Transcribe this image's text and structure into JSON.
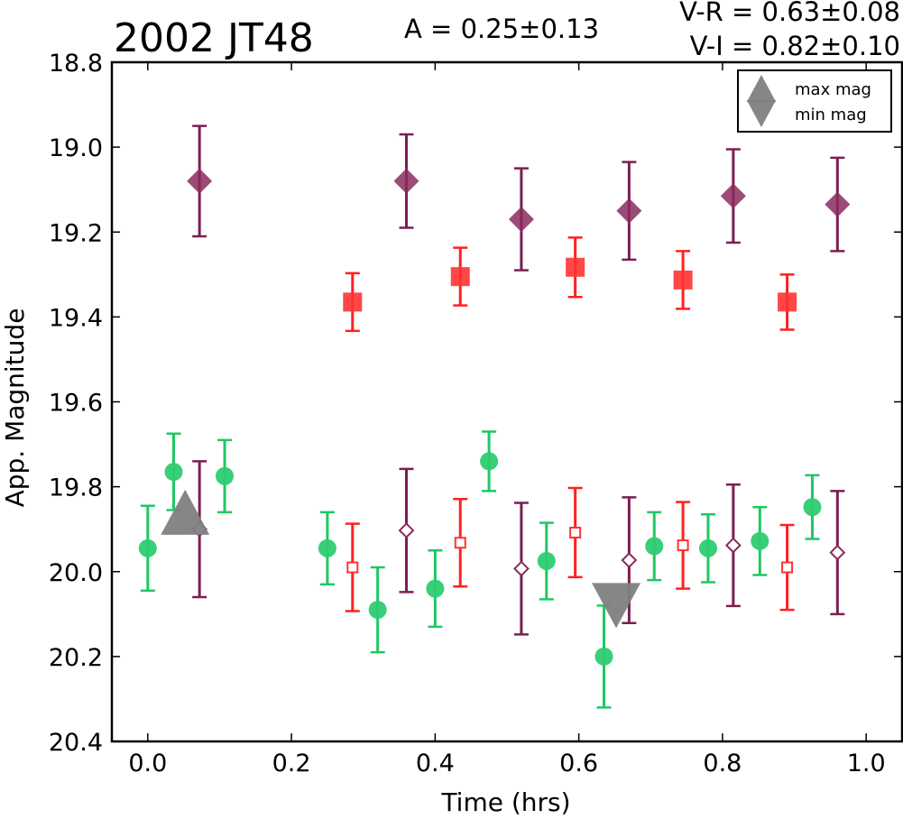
{
  "chart_data": {
    "type": "scatter",
    "title": "2002 JT48",
    "amplitude_text": "A  = 0.25±0.13",
    "color_lines": [
      "V-R = 0.63±0.08",
      "V-I  = 0.82±0.10"
    ],
    "xlabel": "Time (hrs)",
    "ylabel": "App. Magnitude",
    "xlim": [
      -0.05,
      1.05
    ],
    "ylim": [
      20.4,
      18.8
    ],
    "y_inverted": true,
    "xticks": [
      "0.0",
      "0.2",
      "0.4",
      "0.6",
      "0.8",
      "1.0"
    ],
    "xtick_values": [
      0.0,
      0.2,
      0.4,
      0.6,
      0.8,
      1.0
    ],
    "yticks": [
      "18.8",
      "19.0",
      "19.2",
      "19.4",
      "19.6",
      "19.8",
      "20.0",
      "20.2",
      "20.4"
    ],
    "ytick_values": [
      18.8,
      19.0,
      19.2,
      19.4,
      19.6,
      19.8,
      20.0,
      20.2,
      20.4
    ],
    "grid": false,
    "legend_position": "top-right",
    "legend": [
      {
        "label": "max mag",
        "marker": "triangle-up",
        "color": "#808080"
      },
      {
        "label": "min mag",
        "marker": "triangle-down",
        "color": "#808080"
      }
    ],
    "colors": {
      "green": "#2ecc71",
      "red": "#ff3333",
      "purple": "#8b2a5e",
      "purple_bar": "#7a1f52",
      "marker_gray": "#808080"
    },
    "series": [
      {
        "marker": "diamond-filled",
        "color": "#8b2a5e",
        "bar_color": "#7a1f52",
        "points": [
          {
            "x": 0.072,
            "y": 19.08,
            "err": 0.13
          },
          {
            "x": 0.36,
            "y": 19.08,
            "err": 0.11
          },
          {
            "x": 0.52,
            "y": 19.17,
            "err": 0.12
          },
          {
            "x": 0.67,
            "y": 19.15,
            "err": 0.115
          },
          {
            "x": 0.815,
            "y": 19.115,
            "err": 0.11
          },
          {
            "x": 0.96,
            "y": 19.135,
            "err": 0.11
          }
        ]
      },
      {
        "marker": "square-filled",
        "color": "#ff3333",
        "bar_color": "#ff2020",
        "points": [
          {
            "x": 0.285,
            "y": 19.365,
            "err": 0.068
          },
          {
            "x": 0.435,
            "y": 19.305,
            "err": 0.068
          },
          {
            "x": 0.595,
            "y": 19.283,
            "err": 0.07
          },
          {
            "x": 0.745,
            "y": 19.313,
            "err": 0.068
          },
          {
            "x": 0.89,
            "y": 19.365,
            "err": 0.065
          }
        ]
      },
      {
        "marker": "circle-filled",
        "color": "#2ecc71",
        "bar_color": "#1ec864",
        "points": [
          {
            "x": 0.0,
            "y": 19.945,
            "err": 0.1
          },
          {
            "x": 0.036,
            "y": 19.765,
            "err": 0.09
          },
          {
            "x": 0.107,
            "y": 19.775,
            "err": 0.085
          },
          {
            "x": 0.25,
            "y": 19.945,
            "err": 0.085
          },
          {
            "x": 0.32,
            "y": 20.09,
            "err": 0.1
          },
          {
            "x": 0.4,
            "y": 20.04,
            "err": 0.09
          },
          {
            "x": 0.475,
            "y": 19.74,
            "err": 0.07
          },
          {
            "x": 0.555,
            "y": 19.975,
            "err": 0.09
          },
          {
            "x": 0.635,
            "y": 20.2,
            "err": 0.12
          },
          {
            "x": 0.705,
            "y": 19.94,
            "err": 0.08
          },
          {
            "x": 0.78,
            "y": 19.945,
            "err": 0.08
          },
          {
            "x": 0.852,
            "y": 19.928,
            "err": 0.08
          },
          {
            "x": 0.925,
            "y": 19.848,
            "err": 0.075
          }
        ]
      },
      {
        "marker": "square-open",
        "color": "#ff3333",
        "bar_color": "#ff2020",
        "points": [
          {
            "x": 0.285,
            "y": 19.99,
            "err": 0.103
          },
          {
            "x": 0.435,
            "y": 19.932,
            "err": 0.103
          },
          {
            "x": 0.595,
            "y": 19.908,
            "err": 0.105
          },
          {
            "x": 0.745,
            "y": 19.938,
            "err": 0.102
          },
          {
            "x": 0.89,
            "y": 19.99,
            "err": 0.1
          }
        ]
      },
      {
        "marker": "diamond-open",
        "color": "#8b2a5e",
        "bar_color": "#7a1f52",
        "points": [
          {
            "x": 0.072,
            "y": 19.9,
            "err": 0.16
          },
          {
            "x": 0.36,
            "y": 19.903,
            "err": 0.145
          },
          {
            "x": 0.52,
            "y": 19.993,
            "err": 0.155
          },
          {
            "x": 0.67,
            "y": 19.973,
            "err": 0.148
          },
          {
            "x": 0.815,
            "y": 19.938,
            "err": 0.143
          },
          {
            "x": 0.96,
            "y": 19.955,
            "err": 0.145
          }
        ]
      }
    ],
    "extrema": [
      {
        "label": "max mag",
        "marker": "triangle-up",
        "x": 0.052,
        "y": 19.86
      },
      {
        "label": "min mag",
        "marker": "triangle-down",
        "x": 0.652,
        "y": 20.08
      }
    ]
  }
}
